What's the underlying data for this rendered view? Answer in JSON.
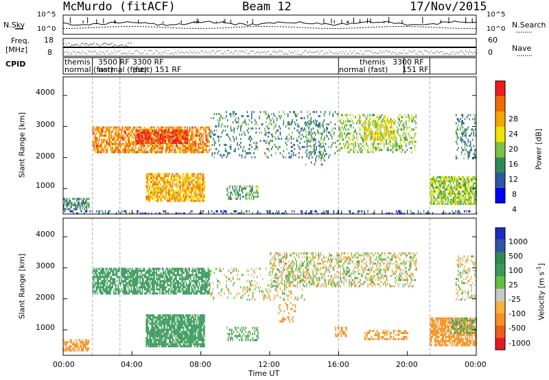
{
  "header": {
    "station": "McMurdo (fitACF)",
    "beam": "Beam 12",
    "date": "17/Nov/2015"
  },
  "panels": {
    "noise": {
      "left_label": "N.Sky",
      "left_ticks": [
        "10^5",
        "10^0"
      ],
      "right_label": "N.Search",
      "right_ticks": [
        "10^5",
        "10^0"
      ]
    },
    "freq": {
      "left_label_line1": "Freq.",
      "left_label_line2": "[MHz]",
      "left_ticks": [
        "18",
        "8"
      ],
      "right_label": "Nave",
      "right_ticks": [
        "60",
        "0"
      ]
    },
    "cpid": {
      "label": "CPID",
      "annotations": [
        {
          "text": "themis",
          "t": 0.1
        },
        {
          "text": "normal (fast)",
          "t": 0.1
        },
        {
          "text": "3500 RF",
          "t": 1.7
        },
        {
          "text": "3300 RF",
          "t": 3.3
        },
        {
          "text": "normal (fast)",
          "t": 1.7
        },
        {
          "text": "(fast) 151 RF",
          "t": 3.3
        },
        {
          "text": "themis",
          "t": 16.2
        },
        {
          "text": "3300 RF",
          "t": 19.1
        },
        {
          "text": "normal (fast)",
          "t": 16.2
        },
        {
          "text": "151 RF",
          "t": 19.8
        }
      ]
    }
  },
  "colorbars": {
    "power": {
      "label": "Power [dB]",
      "ticks": [
        "28",
        "24",
        "20",
        "16",
        "12",
        "8",
        "4"
      ],
      "colors": [
        "#0000ff",
        "#2f56a6",
        "#2e8b57",
        "#7cc242",
        "#f2e400",
        "#f7a600",
        "#f26a00",
        "#ee1c1c"
      ]
    },
    "velocity": {
      "label_main": "Velocity [m s",
      "label_sup": "-1",
      "label_end": "]",
      "ticks": [
        "1000",
        "500",
        "100",
        "25",
        "-25",
        "-100",
        "-500",
        "-1000"
      ],
      "colors": [
        "#e31a1c",
        "#f25c19",
        "#f7901e",
        "#fbb03b",
        "#c8c8c8",
        "#60c040",
        "#3a9a5a",
        "#2e8b57",
        "#2f56a6",
        "#1a2fc0"
      ]
    }
  },
  "axes": {
    "ylabel": "Slant Range [km]",
    "yticks": [
      "4000",
      "3000",
      "2000",
      "1000"
    ],
    "xlabel": "Time UT",
    "xticks": [
      "00:00",
      "04:00",
      "08:00",
      "12:00",
      "16:00",
      "20:00",
      "00:00"
    ]
  },
  "chart_data": [
    {
      "type": "heatmap",
      "title": "Power",
      "xlabel": "Time UT",
      "ylabel": "Slant Range [km]",
      "xlim": [
        0,
        24
      ],
      "ylim": [
        180,
        4600
      ],
      "colorbar": {
        "label": "Power [dB]",
        "range": [
          0,
          32
        ]
      },
      "scan_period_markers_hours": [
        1.7,
        3.3,
        16.0,
        21.3
      ],
      "regions": [
        {
          "t0": 1.7,
          "t1": 8.5,
          "r0": 2200,
          "r1": 3000,
          "value": 24,
          "density": 0.7
        },
        {
          "t0": 4.2,
          "t1": 7.2,
          "r0": 2500,
          "r1": 2900,
          "value": 28,
          "density": 0.8
        },
        {
          "t0": 4.8,
          "t1": 8.2,
          "r0": 600,
          "r1": 1500,
          "value": 22,
          "density": 0.75
        },
        {
          "t0": 0.0,
          "t1": 1.5,
          "r0": 350,
          "r1": 700,
          "value": 10,
          "density": 0.6
        },
        {
          "t0": 8.5,
          "t1": 16.0,
          "r0": 2000,
          "r1": 3500,
          "value": 9,
          "density": 0.18
        },
        {
          "t0": 9.5,
          "t1": 11.3,
          "r0": 700,
          "r1": 1100,
          "value": 12,
          "density": 0.5
        },
        {
          "t0": 14.0,
          "t1": 15.3,
          "r0": 1800,
          "r1": 3200,
          "value": 10,
          "density": 0.25
        },
        {
          "t0": 16.0,
          "t1": 20.5,
          "r0": 2200,
          "r1": 3400,
          "value": 14,
          "density": 0.35
        },
        {
          "t0": 17.5,
          "t1": 19.2,
          "r0": 2600,
          "r1": 3200,
          "value": 18,
          "density": 0.55
        },
        {
          "t0": 21.3,
          "t1": 24.0,
          "r0": 500,
          "r1": 1400,
          "value": 15,
          "density": 0.75
        },
        {
          "t0": 22.8,
          "t1": 24.0,
          "r0": 2000,
          "r1": 3400,
          "value": 9,
          "density": 0.3
        },
        {
          "t0": 0.0,
          "t1": 24.0,
          "r0": 200,
          "r1": 300,
          "value": 6,
          "density": 0.3
        }
      ]
    },
    {
      "type": "heatmap",
      "title": "Velocity",
      "xlabel": "Time UT",
      "ylabel": "Slant Range [km]",
      "xlim": [
        0,
        24
      ],
      "ylim": [
        180,
        4600
      ],
      "colorbar": {
        "label": "Velocity [m s-1]",
        "range": [
          -1000,
          1000
        ]
      },
      "scan_period_markers_hours": [
        1.7,
        3.3,
        16.0,
        21.3
      ],
      "regions": [
        {
          "t0": 1.7,
          "t1": 8.5,
          "r0": 2200,
          "r1": 3000,
          "value": 300,
          "density": 0.7
        },
        {
          "t0": 4.8,
          "t1": 8.2,
          "r0": 500,
          "r1": 1500,
          "value": 250,
          "density": 0.8
        },
        {
          "t0": 0.0,
          "t1": 1.5,
          "r0": 350,
          "r1": 700,
          "value": -200,
          "density": 0.6
        },
        {
          "t0": 8.5,
          "t1": 14.0,
          "r0": 2000,
          "r1": 3000,
          "value": 0,
          "density": 0.2
        },
        {
          "t0": 9.5,
          "t1": 11.3,
          "r0": 700,
          "r1": 1100,
          "value": 100,
          "density": 0.5
        },
        {
          "t0": 12.0,
          "t1": 20.5,
          "r0": 2400,
          "r1": 3500,
          "value": 0,
          "density": 0.4
        },
        {
          "t0": 12.5,
          "t1": 13.5,
          "r0": 1300,
          "r1": 1900,
          "value": -300,
          "density": 0.25
        },
        {
          "t0": 15.8,
          "t1": 16.5,
          "r0": 800,
          "r1": 1100,
          "value": -300,
          "density": 0.5
        },
        {
          "t0": 17.5,
          "t1": 20.0,
          "r0": 700,
          "r1": 1000,
          "value": -250,
          "density": 0.5
        },
        {
          "t0": 21.3,
          "t1": 24.0,
          "r0": 500,
          "r1": 1400,
          "value": -350,
          "density": 0.75
        },
        {
          "t0": 22.5,
          "t1": 24.0,
          "r0": 900,
          "r1": 1400,
          "value": 120,
          "density": 0.45
        },
        {
          "t0": 22.8,
          "t1": 24.0,
          "r0": 2000,
          "r1": 3400,
          "value": 0,
          "density": 0.3
        }
      ]
    }
  ]
}
